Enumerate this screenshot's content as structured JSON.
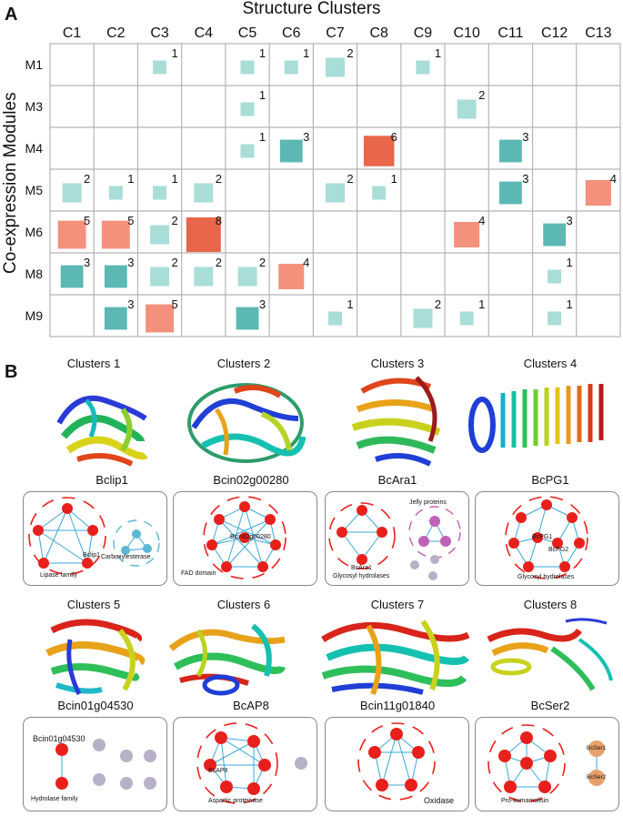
{
  "panel_a": {
    "letter": "A",
    "title": "Structure Clusters",
    "ylabel": "Co-expression Modules"
  },
  "chart_data": {
    "type": "heatmap",
    "title": "Structure Clusters",
    "xlabel": "Structure Clusters",
    "ylabel": "Co-expression Modules",
    "columns": [
      "C1",
      "C2",
      "C3",
      "C4",
      "C5",
      "C6",
      "C7",
      "C8",
      "C9",
      "C10",
      "C11",
      "C12",
      "C13"
    ],
    "rows": [
      "M1",
      "M3",
      "M4",
      "M5",
      "M6",
      "M8",
      "M9"
    ],
    "cells": [
      {
        "row": "M1",
        "col": "C3",
        "value": 1
      },
      {
        "row": "M1",
        "col": "C5",
        "value": 1
      },
      {
        "row": "M1",
        "col": "C6",
        "value": 1
      },
      {
        "row": "M1",
        "col": "C7",
        "value": 2
      },
      {
        "row": "M1",
        "col": "C9",
        "value": 1
      },
      {
        "row": "M3",
        "col": "C5",
        "value": 1
      },
      {
        "row": "M3",
        "col": "C10",
        "value": 2
      },
      {
        "row": "M4",
        "col": "C5",
        "value": 1
      },
      {
        "row": "M4",
        "col": "C6",
        "value": 3
      },
      {
        "row": "M4",
        "col": "C8",
        "value": 6
      },
      {
        "row": "M4",
        "col": "C11",
        "value": 3
      },
      {
        "row": "M5",
        "col": "C1",
        "value": 2
      },
      {
        "row": "M5",
        "col": "C2",
        "value": 1
      },
      {
        "row": "M5",
        "col": "C3",
        "value": 1
      },
      {
        "row": "M5",
        "col": "C4",
        "value": 2
      },
      {
        "row": "M5",
        "col": "C7",
        "value": 2
      },
      {
        "row": "M5",
        "col": "C8",
        "value": 1
      },
      {
        "row": "M5",
        "col": "C11",
        "value": 3
      },
      {
        "row": "M5",
        "col": "C13",
        "value": 4
      },
      {
        "row": "M6",
        "col": "C1",
        "value": 5
      },
      {
        "row": "M6",
        "col": "C2",
        "value": 5
      },
      {
        "row": "M6",
        "col": "C3",
        "value": 2
      },
      {
        "row": "M6",
        "col": "C4",
        "value": 8
      },
      {
        "row": "M6",
        "col": "C10",
        "value": 4
      },
      {
        "row": "M6",
        "col": "C12",
        "value": 3
      },
      {
        "row": "M8",
        "col": "C1",
        "value": 3
      },
      {
        "row": "M8",
        "col": "C2",
        "value": 3
      },
      {
        "row": "M8",
        "col": "C3",
        "value": 2
      },
      {
        "row": "M8",
        "col": "C4",
        "value": 2
      },
      {
        "row": "M8",
        "col": "C5",
        "value": 2
      },
      {
        "row": "M8",
        "col": "C6",
        "value": 4
      },
      {
        "row": "M8",
        "col": "C12",
        "value": 1
      },
      {
        "row": "M9",
        "col": "C2",
        "value": 3
      },
      {
        "row": "M9",
        "col": "C3",
        "value": 5
      },
      {
        "row": "M9",
        "col": "C5",
        "value": 3
      },
      {
        "row": "M9",
        "col": "C7",
        "value": 1
      },
      {
        "row": "M9",
        "col": "C9",
        "value": 2
      },
      {
        "row": "M9",
        "col": "C10",
        "value": 1
      },
      {
        "row": "M9",
        "col": "C12",
        "value": 1
      }
    ],
    "color_scale": {
      "low": "#a9ddd8",
      "mid": "#5bb8b3",
      "high": "#e8664a",
      "high_light": "#f3917c"
    }
  },
  "panel_b": {
    "letter": "B",
    "clusters": [
      {
        "title": "Clusters 1",
        "protein": "Bclip1",
        "labels": [
          "Bclip1",
          "Carboxylesterase",
          "Lipase family"
        ]
      },
      {
        "title": "Clusters 2",
        "protein": "Bcin02g00280",
        "labels": [
          "Bcin02g00280",
          "FAD domain"
        ]
      },
      {
        "title": "Clusters 3",
        "protein": "BcAra1",
        "labels": [
          "Jelly proteins",
          "BcAra1",
          "Glycosyl hydrolases"
        ]
      },
      {
        "title": "Clusters 4",
        "protein": "BcPG1",
        "labels": [
          "BcPG1",
          "BcPG2",
          "Glycosyl hydrolases"
        ]
      },
      {
        "title": "Clusters 5",
        "protein": "Bcin01g04530",
        "labels": [
          "Bcin01g04530",
          "Hydrolase family"
        ]
      },
      {
        "title": "Clusters 6",
        "protein": "BcAP8",
        "labels": [
          "BcAP8",
          "Aspartic proteinase"
        ]
      },
      {
        "title": "Clusters 7",
        "protein": "Bcin11g01840",
        "labels": [
          "Oxidase"
        ]
      },
      {
        "title": "Clusters 8",
        "protein": "BcSer2",
        "labels": [
          "BcSer1",
          "BcSer2",
          "Pro-kumamolisin"
        ]
      }
    ]
  },
  "colors": {
    "node_red": "#e8201c",
    "node_purple": "#c061b8",
    "node_gray": "#b8b0c6",
    "node_blue": "#5bb7d6",
    "node_orange": "#e8a06a",
    "edge": "#38a8d8",
    "dash_red": "#e8201c",
    "dash_purple": "#c061b8",
    "dash_blue": "#5bb7d6",
    "grid": "#b5b5b5"
  }
}
